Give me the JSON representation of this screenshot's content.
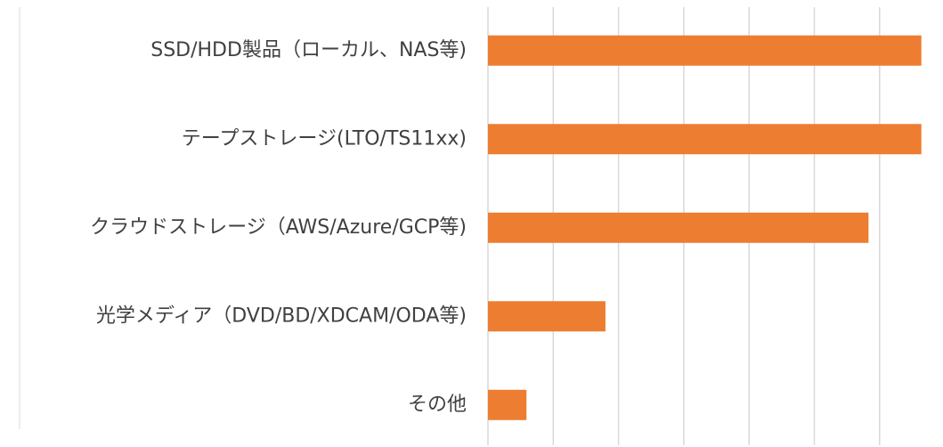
{
  "chart_data": {
    "type": "barh",
    "categories": [
      "SSD/HDD製品（ローカル、NAS等)",
      "テープストレージ(LTO/TS11xx)",
      "クラウドストレージ（AWS/Azure/GCP等)",
      "光学メディア（DVD/BD/XDCAM/ODA等)",
      "その他"
    ],
    "values": [
      6.64,
      6.64,
      5.83,
      1.8,
      0.59
    ],
    "color": "#ed7d31",
    "xlim": [
      0,
      7
    ],
    "xticks": [
      0,
      1,
      2,
      3,
      4,
      5,
      6,
      7
    ],
    "grid": true
  }
}
